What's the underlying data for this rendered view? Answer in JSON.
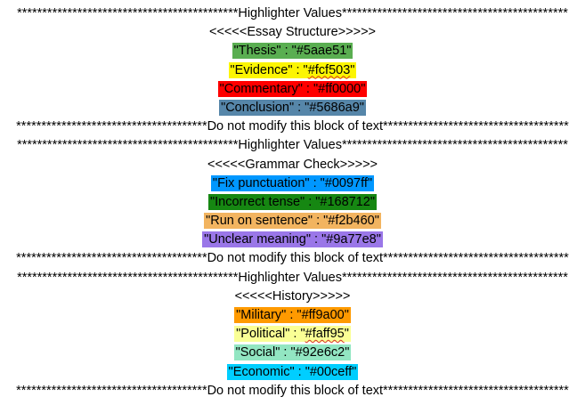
{
  "document": {
    "lines": [
      {
        "type": "text",
        "text": "********************************************Highlighter Values*********************************************"
      },
      {
        "type": "text",
        "text": "<<<<<Essay Structure>>>>>"
      },
      {
        "type": "hl",
        "pre": "\"Thesis\" : \"",
        "code": "#5aae51",
        "post": "\"",
        "bg": "#5aae51",
        "color": "#000000",
        "squiggle": false
      },
      {
        "type": "hl",
        "pre": "\"Evidence\" : \"",
        "code": "#fcf503",
        "post": "\"",
        "bg": "#fcf503",
        "color": "#000000",
        "squiggle": true
      },
      {
        "type": "hl",
        "pre": "\"Commentary\" : \"",
        "code": "#ff0000",
        "post": "\"",
        "bg": "#ff0000",
        "color": "#000000",
        "squiggle": false
      },
      {
        "type": "hl",
        "pre": "\"Conclusion\" : \"",
        "code": "#5686a9",
        "post": "\"",
        "bg": "#5686a9",
        "color": "#000000",
        "squiggle": false
      },
      {
        "type": "text",
        "text": "**************************************Do not modify this block of text*************************************"
      },
      {
        "type": "text",
        "text": "********************************************Highlighter Values*********************************************"
      },
      {
        "type": "text",
        "text": "<<<<<Grammar Check>>>>>"
      },
      {
        "type": "hl",
        "pre": "\"Fix punctuation\" : \"",
        "code": "#0097ff",
        "post": "\"",
        "bg": "#0097ff",
        "color": "#000000",
        "squiggle": false
      },
      {
        "type": "hl",
        "pre": "\"Incorrect tense\" : \"",
        "code": "#168712",
        "post": "\"",
        "bg": "#168712",
        "color": "#000000",
        "squiggle": false
      },
      {
        "type": "hl",
        "pre": "\"Run on sentence\" : \"",
        "code": "#f2b460",
        "post": "\"",
        "bg": "#f2b460",
        "color": "#000000",
        "squiggle": false
      },
      {
        "type": "hl",
        "pre": "\"Unclear meaning\" : \"",
        "code": "#9a77e8",
        "post": "\"",
        "bg": "#9a77e8",
        "color": "#000000",
        "squiggle": false
      },
      {
        "type": "text",
        "text": "**************************************Do not modify this block of text*************************************"
      },
      {
        "type": "text",
        "text": "********************************************Highlighter Values*********************************************"
      },
      {
        "type": "text",
        "text": "<<<<<History>>>>>"
      },
      {
        "type": "hl",
        "pre": "\"Military\" : \"",
        "code": "#ff9a00",
        "post": "\"",
        "bg": "#ff9a00",
        "color": "#000000",
        "squiggle": false
      },
      {
        "type": "hl",
        "pre": "\"Political\" : \"",
        "code": "#faff95",
        "post": "\"",
        "bg": "#faff95",
        "color": "#000000",
        "squiggle": true
      },
      {
        "type": "hl",
        "pre": "\"Social\" : \"",
        "code": "#92e6c2",
        "post": "\"",
        "bg": "#92e6c2",
        "color": "#000000",
        "squiggle": false
      },
      {
        "type": "hl",
        "pre": "\"Economic\" : \"",
        "code": "#00ceff",
        "post": "\"",
        "bg": "#00ceff",
        "color": "#000000",
        "squiggle": false
      },
      {
        "type": "text",
        "text": "**************************************Do not modify this block of text*************************************"
      }
    ]
  }
}
